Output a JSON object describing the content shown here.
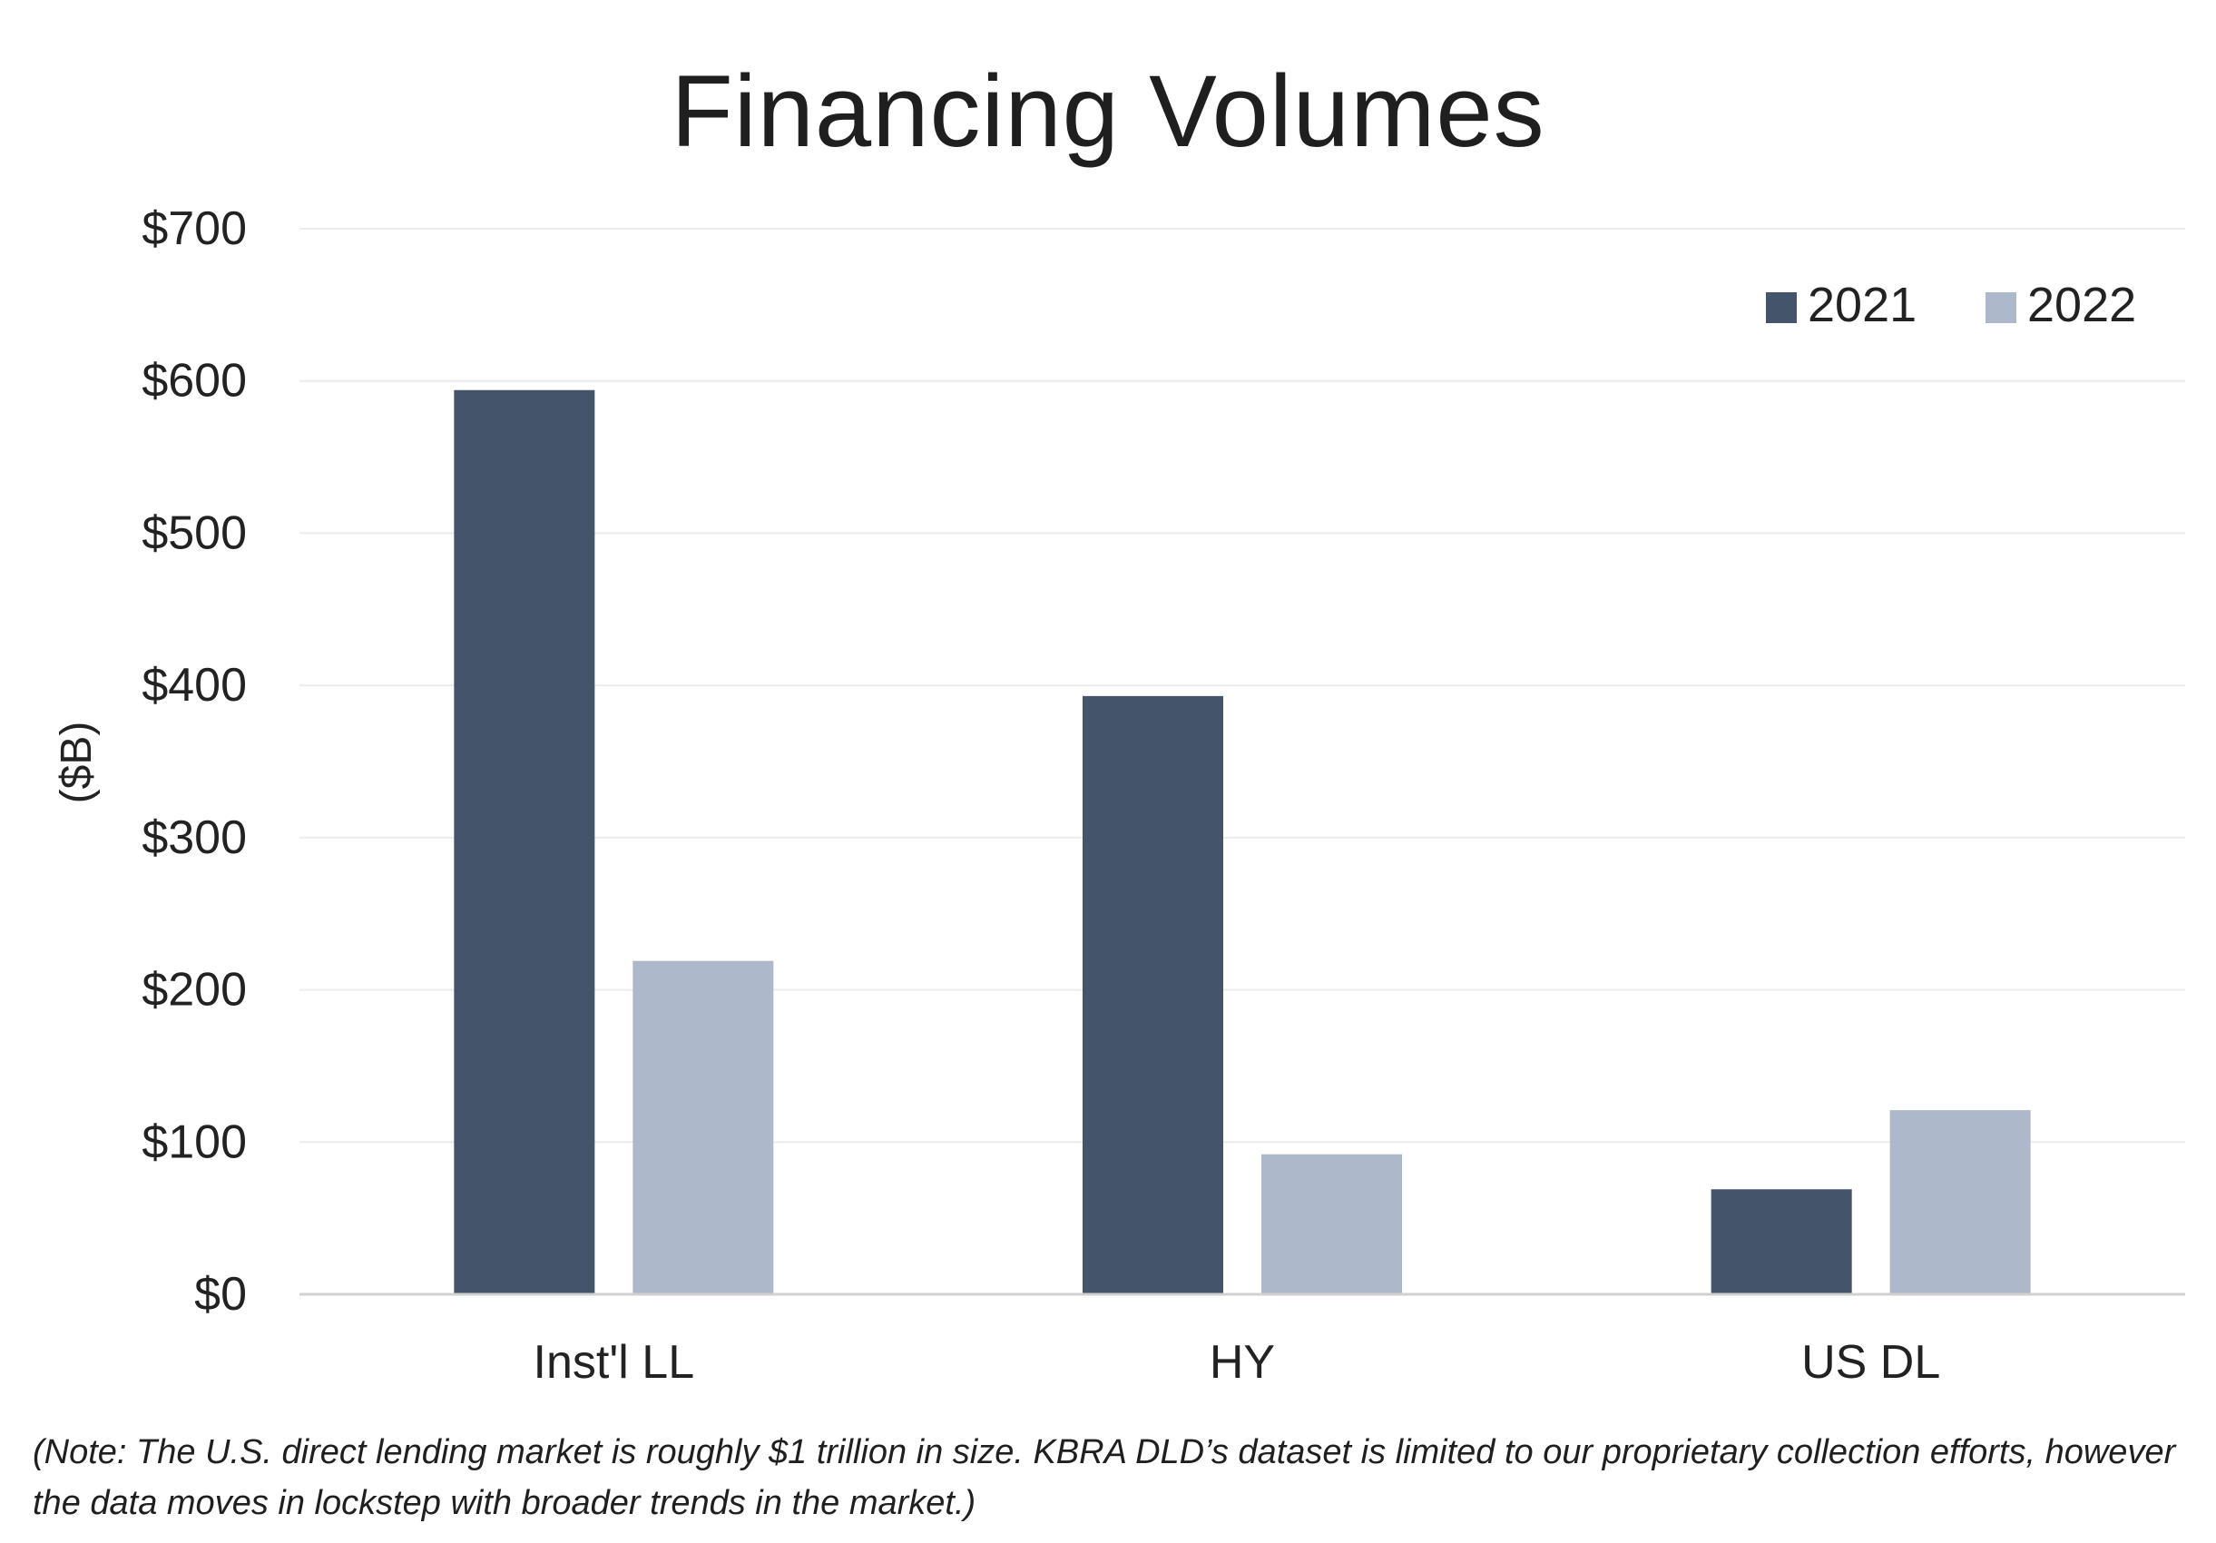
{
  "chart_data": {
    "type": "bar",
    "title": "Financing Volumes",
    "ylabel": "($B)",
    "xlabel": "",
    "categories": [
      "Inst'l LL",
      "HY",
      "US DL"
    ],
    "series": [
      {
        "name": "2021",
        "values": [
          594,
          393,
          69
        ],
        "color": "#44546a"
      },
      {
        "name": "2022",
        "values": [
          219,
          92,
          121
        ],
        "color": "#adb9ca"
      }
    ],
    "ylim": [
      0,
      700
    ],
    "yticks": [
      0,
      100,
      200,
      300,
      400,
      500,
      600,
      700
    ],
    "ytick_labels": [
      "$0",
      "$100",
      "$200",
      "$300",
      "$400",
      "$500",
      "$600",
      "$700"
    ],
    "grid": true,
    "legend_position": "top-right",
    "note": "(Note: The U.S. direct lending market is roughly $1 trillion in size. KBRA DLD’s dataset is limited to our proprietary collection efforts, however the data moves in lockstep with broader trends in the market.)"
  }
}
